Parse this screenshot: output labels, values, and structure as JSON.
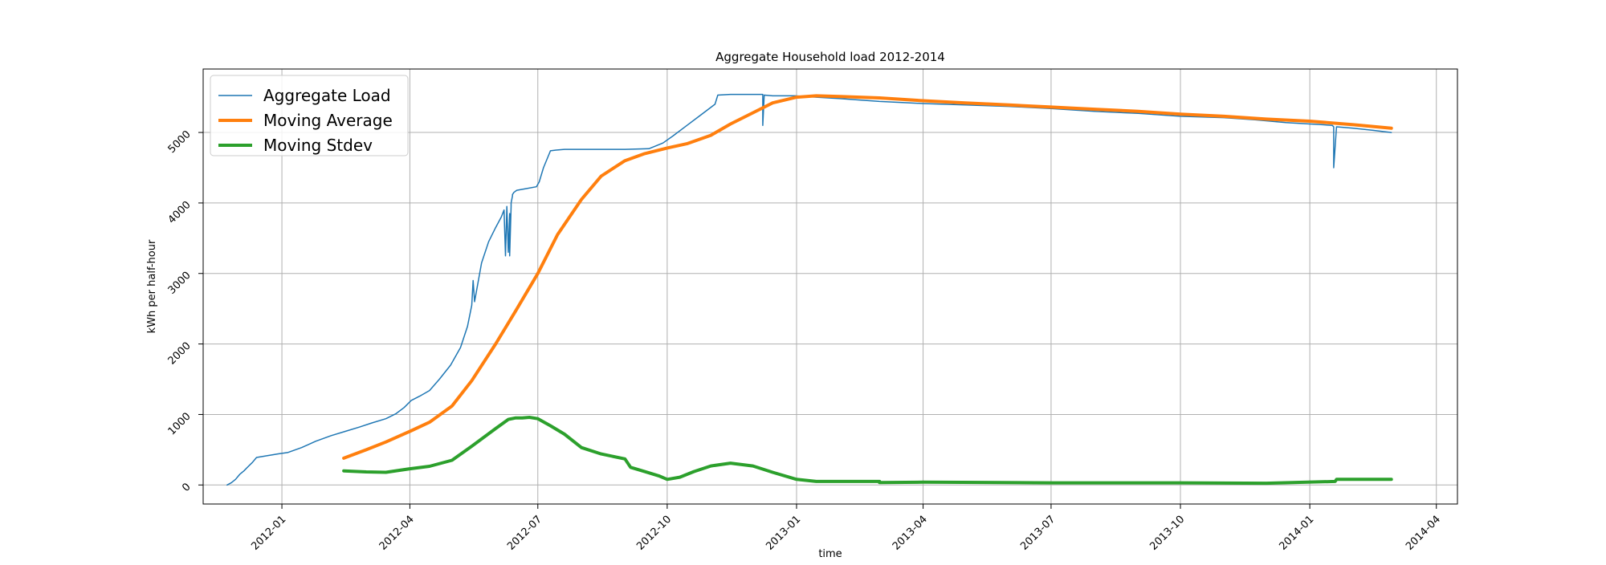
{
  "chart_data": {
    "type": "line",
    "title": "Aggregate Household load 2012-2014",
    "xlabel": "time",
    "ylabel": "kWh per half-hour",
    "xlim": [
      "2011-11-06",
      "2014-04-16"
    ],
    "ylim": [
      -270,
      5900
    ],
    "grid": true,
    "legend_position": "top-left",
    "x_ticks": [
      "2012-01-01",
      "2012-04-01",
      "2012-07-01",
      "2012-10-01",
      "2013-01-01",
      "2013-04-01",
      "2013-07-01",
      "2013-10-01",
      "2014-01-01",
      "2014-04-01"
    ],
    "x_tick_labels": [
      "2012-01",
      "2012-04",
      "2012-07",
      "2012-10",
      "2013-01",
      "2013-04",
      "2013-07",
      "2013-10",
      "2014-01",
      "2014-04"
    ],
    "y_ticks": [
      0,
      1000,
      2000,
      3000,
      4000,
      5000
    ],
    "y_tick_labels": [
      "0",
      "1000",
      "2000",
      "3000",
      "4000",
      "5000"
    ],
    "series": [
      {
        "name": "Aggregate Load",
        "color": "#1f77b4",
        "width": 1.5,
        "x": [
          "2011-11-23",
          "2011-11-26",
          "2011-11-29",
          "2011-12-02",
          "2011-12-05",
          "2011-12-08",
          "2011-12-11",
          "2011-12-14",
          "2011-12-17",
          "2011-12-20",
          "2011-12-23",
          "2011-12-26",
          "2011-12-29",
          "2012-01-05",
          "2012-01-15",
          "2012-01-25",
          "2012-02-05",
          "2012-02-15",
          "2012-02-25",
          "2012-03-05",
          "2012-03-15",
          "2012-03-22",
          "2012-03-28",
          "2012-04-02",
          "2012-04-08",
          "2012-04-15",
          "2012-04-22",
          "2012-04-30",
          "2012-05-07",
          "2012-05-12",
          "2012-05-15",
          "2012-05-16",
          "2012-05-17",
          "2012-05-22",
          "2012-05-27",
          "2012-06-01",
          "2012-06-05",
          "2012-06-07",
          "2012-06-08",
          "2012-06-09",
          "2012-06-10",
          "2012-06-11",
          "2012-06-11",
          "2012-06-12",
          "2012-06-12",
          "2012-06-13",
          "2012-06-13",
          "2012-06-14",
          "2012-06-16",
          "2012-06-22",
          "2012-06-30",
          "2012-07-02",
          "2012-07-05",
          "2012-07-10",
          "2012-07-14",
          "2012-07-20",
          "2012-08-01",
          "2012-08-15",
          "2012-09-01",
          "2012-09-18",
          "2012-09-28",
          "2012-10-05",
          "2012-10-15",
          "2012-10-25",
          "2012-11-04",
          "2012-11-06",
          "2012-11-15",
          "2012-11-25",
          "2012-12-05",
          "2012-12-08",
          "2012-12-08",
          "2012-12-09",
          "2012-12-15",
          "2012-12-31",
          "2013-01-15",
          "2013-02-01",
          "2013-03-01",
          "2013-04-01",
          "2013-05-01",
          "2013-06-01",
          "2013-07-01",
          "2013-08-01",
          "2013-09-01",
          "2013-10-01",
          "2013-11-01",
          "2013-11-23",
          "2013-12-15",
          "2014-01-10",
          "2014-01-17",
          "2014-01-18",
          "2014-01-18",
          "2014-01-20",
          "2014-02-01",
          "2014-02-15",
          "2014-02-28"
        ],
        "values": [
          0,
          30,
          80,
          150,
          200,
          260,
          320,
          390,
          400,
          410,
          420,
          430,
          440,
          460,
          530,
          620,
          700,
          760,
          820,
          880,
          940,
          1010,
          1100,
          1200,
          1260,
          1340,
          1500,
          1700,
          1950,
          2250,
          2550,
          2900,
          2600,
          3150,
          3450,
          3650,
          3800,
          3900,
          3250,
          3950,
          3300,
          3850,
          3250,
          3950,
          4000,
          4100,
          4120,
          4150,
          4180,
          4200,
          4230,
          4300,
          4500,
          4740,
          4750,
          4760,
          4760,
          4760,
          4760,
          4770,
          4850,
          4950,
          5100,
          5250,
          5400,
          5530,
          5540,
          5540,
          5540,
          5540,
          5100,
          5530,
          5520,
          5520,
          5500,
          5480,
          5440,
          5410,
          5390,
          5370,
          5340,
          5300,
          5270,
          5230,
          5210,
          5180,
          5140,
          5110,
          5100,
          5080,
          4500,
          5080,
          5060,
          5030,
          5000
        ]
      },
      {
        "name": "Moving Average",
        "color": "#ff7f0e",
        "width": 4,
        "x": [
          "2012-02-14",
          "2012-03-01",
          "2012-03-15",
          "2012-04-01",
          "2012-04-15",
          "2012-05-01",
          "2012-05-15",
          "2012-06-01",
          "2012-06-15",
          "2012-07-01",
          "2012-07-15",
          "2012-08-01",
          "2012-08-15",
          "2012-09-01",
          "2012-09-15",
          "2012-10-01",
          "2012-10-15",
          "2012-11-01",
          "2012-11-15",
          "2012-12-01",
          "2012-12-15",
          "2013-01-01",
          "2013-01-15",
          "2013-02-01",
          "2013-03-01",
          "2013-04-01",
          "2013-05-01",
          "2013-06-01",
          "2013-07-01",
          "2013-08-01",
          "2013-09-01",
          "2013-10-01",
          "2013-11-01",
          "2013-12-01",
          "2014-01-01",
          "2014-02-01",
          "2014-02-28"
        ],
        "values": [
          380,
          500,
          610,
          760,
          890,
          1120,
          1480,
          2000,
          2460,
          3000,
          3550,
          4050,
          4380,
          4600,
          4700,
          4780,
          4840,
          4960,
          5120,
          5280,
          5420,
          5500,
          5520,
          5510,
          5490,
          5450,
          5420,
          5390,
          5360,
          5330,
          5300,
          5260,
          5230,
          5190,
          5160,
          5110,
          5060
        ]
      },
      {
        "name": "Moving Stdev",
        "color": "#2ca02c",
        "width": 4,
        "x": [
          "2012-02-14",
          "2012-03-01",
          "2012-03-15",
          "2012-04-01",
          "2012-04-15",
          "2012-05-01",
          "2012-05-15",
          "2012-06-01",
          "2012-06-10",
          "2012-06-15",
          "2012-06-20",
          "2012-06-25",
          "2012-07-01",
          "2012-07-10",
          "2012-07-20",
          "2012-08-01",
          "2012-08-15",
          "2012-09-01",
          "2012-09-05",
          "2012-09-15",
          "2012-09-25",
          "2012-10-01",
          "2012-10-10",
          "2012-10-20",
          "2012-11-01",
          "2012-11-15",
          "2012-12-01",
          "2012-12-15",
          "2013-01-01",
          "2013-01-15",
          "2013-02-01",
          "2013-03-01",
          "2013-03-01",
          "2013-04-01",
          "2013-07-01",
          "2013-10-01",
          "2013-12-01",
          "2014-01-19",
          "2014-01-20",
          "2014-02-01",
          "2014-02-28"
        ],
        "values": [
          200,
          185,
          180,
          230,
          265,
          350,
          550,
          800,
          930,
          950,
          950,
          960,
          940,
          840,
          720,
          530,
          440,
          370,
          250,
          190,
          130,
          80,
          110,
          190,
          270,
          310,
          270,
          180,
          80,
          50,
          50,
          50,
          35,
          40,
          30,
          30,
          25,
          50,
          80,
          80,
          80
        ]
      }
    ]
  }
}
